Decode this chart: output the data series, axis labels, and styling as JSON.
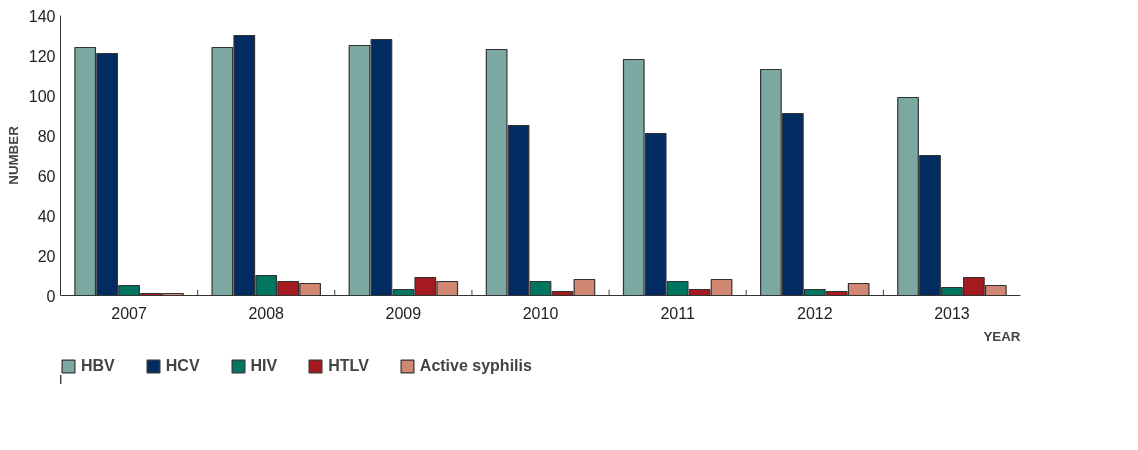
{
  "chart_data": {
    "type": "bar",
    "xlabel": "YEAR",
    "ylabel": "NUMBER",
    "categories": [
      "2007",
      "2008",
      "2009",
      "2010",
      "2011",
      "2012",
      "2013"
    ],
    "series": [
      {
        "name": "HBV",
        "color": "#7ba9a1",
        "values": [
          124,
          124,
          125,
          123,
          118,
          113,
          99
        ]
      },
      {
        "name": "HCV",
        "color": "#022b62",
        "values": [
          121,
          130,
          128,
          85,
          81,
          91,
          70
        ]
      },
      {
        "name": "HIV",
        "color": "#007660",
        "values": [
          5,
          10,
          3,
          7,
          7,
          3,
          4
        ]
      },
      {
        "name": "HTLV",
        "color": "#a51a20",
        "values": [
          1,
          7,
          9,
          2,
          3,
          2,
          9
        ]
      },
      {
        "name": "Active syphilis",
        "color": "#d08872",
        "values": [
          1,
          6,
          7,
          8,
          8,
          6,
          5
        ]
      }
    ],
    "ylim": [
      0,
      140
    ],
    "yticks": [
      0,
      20,
      40,
      60,
      80,
      100,
      120,
      140
    ],
    "grid": false,
    "legend": "bottom left"
  }
}
